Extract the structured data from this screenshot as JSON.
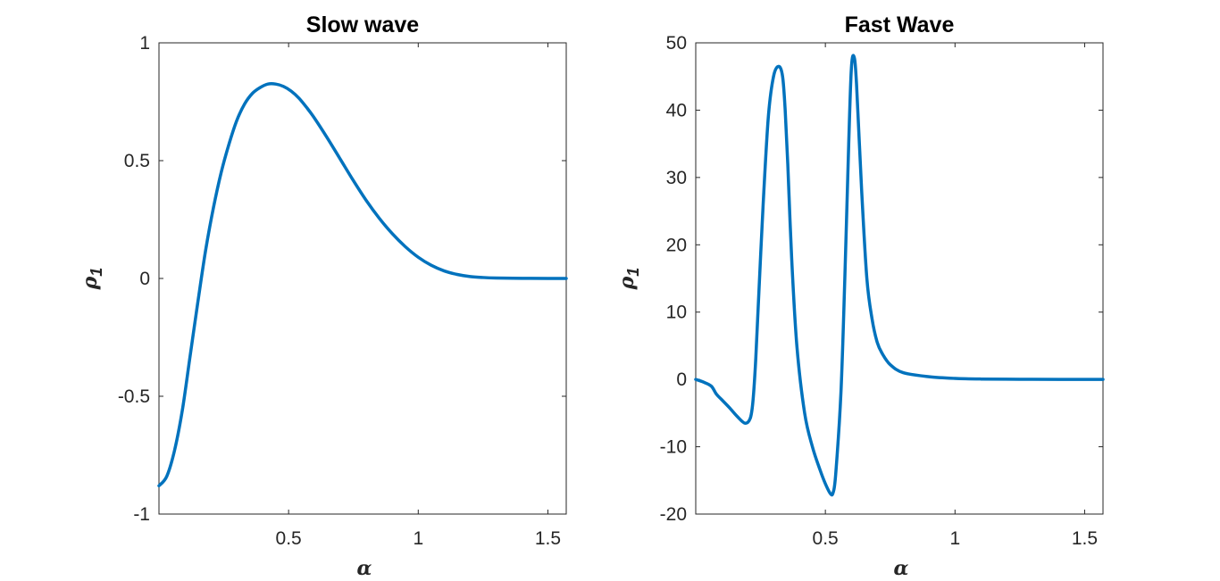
{
  "chart_data": [
    {
      "type": "line",
      "title": "Slow wave",
      "xlabel": "α",
      "ylabel": "ρ",
      "ylabel_sub": "1",
      "xlim": [
        0.0,
        1.5708
      ],
      "ylim": [
        -1,
        1
      ],
      "xticks": [
        0.5,
        1,
        1.5
      ],
      "xtick_labels": [
        "0.5",
        "1",
        "1.5"
      ],
      "yticks": [
        -1,
        -0.5,
        0,
        0.5,
        1
      ],
      "ytick_labels": [
        "-1",
        "-0.5",
        "0",
        "0.5",
        "1"
      ],
      "grid": false,
      "color": "#0072BD",
      "series": [
        {
          "x": [
            0.0,
            0.03,
            0.06,
            0.09,
            0.12,
            0.15,
            0.18,
            0.21,
            0.24,
            0.27,
            0.3,
            0.33,
            0.36,
            0.39,
            0.42,
            0.45,
            0.48,
            0.51,
            0.54,
            0.57,
            0.6,
            0.65,
            0.7,
            0.75,
            0.8,
            0.85,
            0.9,
            0.95,
            1.0,
            1.05,
            1.1,
            1.15,
            1.2,
            1.25,
            1.3,
            1.4,
            1.5,
            1.5708
          ],
          "y": [
            -0.88,
            -0.84,
            -0.73,
            -0.56,
            -0.33,
            -0.1,
            0.12,
            0.3,
            0.45,
            0.57,
            0.67,
            0.74,
            0.785,
            0.81,
            0.825,
            0.825,
            0.815,
            0.795,
            0.765,
            0.725,
            0.68,
            0.595,
            0.505,
            0.415,
            0.33,
            0.255,
            0.19,
            0.135,
            0.09,
            0.056,
            0.032,
            0.017,
            0.008,
            0.004,
            0.002,
            0.0005,
            0.0001,
            0.0
          ]
        }
      ]
    },
    {
      "type": "line",
      "title": "Fast Wave",
      "xlabel": "α",
      "ylabel": "ρ",
      "ylabel_sub": "1",
      "xlim": [
        0.0,
        1.5708
      ],
      "ylim": [
        -20,
        50
      ],
      "xticks": [
        0.5,
        1,
        1.5
      ],
      "xtick_labels": [
        "0.5",
        "1",
        "1.5"
      ],
      "yticks": [
        -20,
        -10,
        0,
        10,
        20,
        30,
        40,
        50
      ],
      "ytick_labels": [
        "-20",
        "-10",
        "0",
        "10",
        "20",
        "30",
        "40",
        "50"
      ],
      "grid": false,
      "color": "#0072BD",
      "series": [
        {
          "x": [
            0.0,
            0.03,
            0.06,
            0.08,
            0.1,
            0.13,
            0.16,
            0.19,
            0.21,
            0.22,
            0.23,
            0.24,
            0.26,
            0.28,
            0.3,
            0.32,
            0.335,
            0.345,
            0.355,
            0.37,
            0.39,
            0.42,
            0.45,
            0.48,
            0.5,
            0.52,
            0.53,
            0.54,
            0.56,
            0.575,
            0.59,
            0.6,
            0.61,
            0.62,
            0.64,
            0.66,
            0.68,
            0.7,
            0.72,
            0.75,
            0.8,
            0.9,
            1.0,
            1.1,
            1.25,
            1.4,
            1.5708
          ],
          "y": [
            0.0,
            -0.4,
            -1.0,
            -2.2,
            -3.0,
            -4.2,
            -5.5,
            -6.5,
            -5.8,
            -3.5,
            2.0,
            10.0,
            26.0,
            39.0,
            45.0,
            46.5,
            45.0,
            40.0,
            32.0,
            18.0,
            5.0,
            -5.0,
            -10.0,
            -13.5,
            -15.5,
            -17.0,
            -16.8,
            -14.0,
            -2.0,
            15.0,
            35.0,
            46.0,
            48.0,
            44.0,
            28.0,
            15.0,
            9.0,
            5.5,
            3.8,
            2.2,
            1.0,
            0.4,
            0.15,
            0.06,
            0.02,
            0.0,
            0.0
          ]
        }
      ]
    }
  ]
}
